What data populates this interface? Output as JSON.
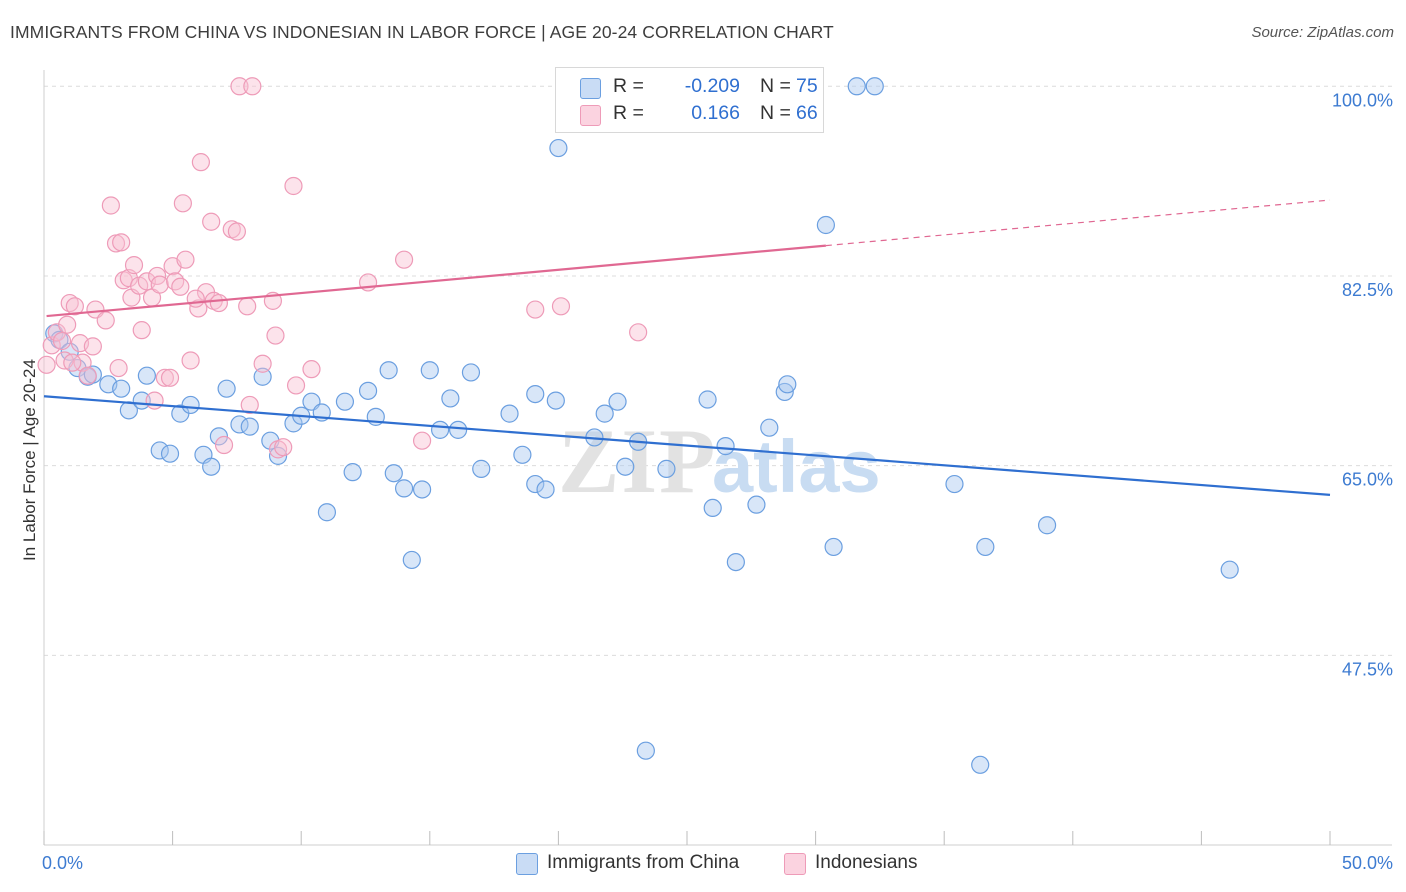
{
  "title": "IMMIGRANTS FROM CHINA VS INDONESIAN IN LABOR FORCE | AGE 20-24 CORRELATION CHART",
  "source": "Source: ZipAtlas.com",
  "watermark": "ZIPatlas",
  "legend": {
    "rows": [
      {
        "r_label": "R =",
        "r_value": "-0.209",
        "n_label": "N =",
        "n_value": "75",
        "color": "#a9c8f0",
        "border": "#5f95db"
      },
      {
        "r_label": "R =",
        "r_value": "0.166",
        "n_label": "N =",
        "n_value": "66",
        "color": "#f8c0d2",
        "border": "#e88aab"
      }
    ]
  },
  "bottom_legend": [
    {
      "label": "Immigrants from China",
      "color": "#a9c8f0",
      "border": "#5f95db"
    },
    {
      "label": "Indonesians",
      "color": "#f8c0d2",
      "border": "#e88aab"
    }
  ],
  "chart_data": {
    "type": "scatter",
    "title": "IMMIGRANTS FROM CHINA VS INDONESIAN IN LABOR FORCE | AGE 20-24 CORRELATION CHART",
    "xlabel": "",
    "ylabel": "In Labor Force | Age 20-24",
    "xlim": [
      0,
      50
    ],
    "ylim": [
      30,
      101.5
    ],
    "x_tick_labels": [
      "0.0%",
      "50.0%"
    ],
    "y_ticks": [
      47.5,
      65.0,
      82.5,
      100.0
    ],
    "y_tick_labels": [
      "47.5%",
      "65.0%",
      "82.5%",
      "100.0%"
    ],
    "grid": true,
    "legend_position": "top-center",
    "series": [
      {
        "name": "Immigrants from China",
        "color": "#6b9fe0",
        "trend": {
          "x": [
            0,
            50
          ],
          "y": [
            71.4,
            62.3
          ],
          "color": "#2f6fd0"
        },
        "points": [
          [
            0.4,
            77.2
          ],
          [
            0.6,
            76.6
          ],
          [
            1.0,
            75.5
          ],
          [
            1.3,
            74.0
          ],
          [
            1.7,
            73.2
          ],
          [
            1.9,
            73.4
          ],
          [
            2.5,
            72.5
          ],
          [
            3.0,
            72.1
          ],
          [
            3.3,
            70.1
          ],
          [
            3.8,
            71.0
          ],
          [
            4.0,
            73.3
          ],
          [
            4.5,
            66.4
          ],
          [
            4.9,
            66.1
          ],
          [
            5.3,
            69.8
          ],
          [
            5.7,
            70.6
          ],
          [
            6.2,
            66.0
          ],
          [
            6.5,
            64.9
          ],
          [
            6.8,
            67.7
          ],
          [
            7.1,
            72.1
          ],
          [
            7.6,
            68.8
          ],
          [
            8.0,
            68.6
          ],
          [
            8.5,
            73.2
          ],
          [
            8.8,
            67.3
          ],
          [
            9.1,
            65.9
          ],
          [
            9.7,
            68.9
          ],
          [
            10.0,
            69.6
          ],
          [
            10.4,
            70.9
          ],
          [
            10.8,
            69.9
          ],
          [
            11.0,
            60.7
          ],
          [
            11.7,
            70.9
          ],
          [
            12.0,
            64.4
          ],
          [
            12.6,
            71.9
          ],
          [
            12.9,
            69.5
          ],
          [
            13.4,
            73.8
          ],
          [
            13.6,
            64.3
          ],
          [
            14.0,
            62.9
          ],
          [
            14.3,
            56.3
          ],
          [
            14.7,
            62.8
          ],
          [
            15.0,
            73.8
          ],
          [
            15.4,
            68.3
          ],
          [
            15.8,
            71.2
          ],
          [
            16.1,
            68.3
          ],
          [
            16.6,
            73.6
          ],
          [
            17.0,
            64.7
          ],
          [
            18.1,
            69.8
          ],
          [
            18.6,
            66.0
          ],
          [
            19.1,
            71.6
          ],
          [
            19.1,
            63.3
          ],
          [
            19.5,
            62.8
          ],
          [
            19.9,
            71.0
          ],
          [
            20.0,
            94.3
          ],
          [
            21.4,
            67.6
          ],
          [
            21.8,
            69.8
          ],
          [
            22.3,
            70.9
          ],
          [
            22.6,
            64.9
          ],
          [
            23.1,
            67.2
          ],
          [
            23.4,
            38.7
          ],
          [
            24.2,
            64.7
          ],
          [
            25.8,
            71.1
          ],
          [
            26.0,
            61.1
          ],
          [
            26.5,
            66.8
          ],
          [
            26.9,
            56.1
          ],
          [
            27.7,
            61.4
          ],
          [
            28.2,
            68.5
          ],
          [
            28.8,
            71.8
          ],
          [
            28.9,
            72.5
          ],
          [
            30.4,
            87.2
          ],
          [
            30.7,
            57.5
          ],
          [
            31.6,
            100.0
          ],
          [
            32.3,
            100.0
          ],
          [
            35.4,
            63.3
          ],
          [
            36.4,
            37.4
          ],
          [
            36.6,
            57.5
          ],
          [
            39.0,
            59.5
          ],
          [
            46.1,
            55.4
          ]
        ]
      },
      {
        "name": "Indonesians",
        "color": "#ee9bb8",
        "trend": {
          "x": [
            0.1,
            30.4
          ],
          "y": [
            78.8,
            85.3
          ],
          "dash_to": [
            50,
            89.5
          ],
          "color": "#e06892"
        },
        "points": [
          [
            0.1,
            74.3
          ],
          [
            0.3,
            76.1
          ],
          [
            0.5,
            77.3
          ],
          [
            0.7,
            76.5
          ],
          [
            0.8,
            74.7
          ],
          [
            0.9,
            78.0
          ],
          [
            1.0,
            80.0
          ],
          [
            1.2,
            79.7
          ],
          [
            1.4,
            76.3
          ],
          [
            1.5,
            74.5
          ],
          [
            1.7,
            73.3
          ],
          [
            1.9,
            76.0
          ],
          [
            2.0,
            79.4
          ],
          [
            2.4,
            78.4
          ],
          [
            2.6,
            89.0
          ],
          [
            2.8,
            85.5
          ],
          [
            3.0,
            85.6
          ],
          [
            3.1,
            82.1
          ],
          [
            3.3,
            82.3
          ],
          [
            3.4,
            80.5
          ],
          [
            3.5,
            83.5
          ],
          [
            3.7,
            81.6
          ],
          [
            3.8,
            77.5
          ],
          [
            4.0,
            82.0
          ],
          [
            4.2,
            80.5
          ],
          [
            4.3,
            71.0
          ],
          [
            4.4,
            82.5
          ],
          [
            4.5,
            81.7
          ],
          [
            4.7,
            73.1
          ],
          [
            4.9,
            73.1
          ],
          [
            5.0,
            83.4
          ],
          [
            5.1,
            82.0
          ],
          [
            5.3,
            81.5
          ],
          [
            5.4,
            89.2
          ],
          [
            5.5,
            84.0
          ],
          [
            5.7,
            74.7
          ],
          [
            6.0,
            79.5
          ],
          [
            6.1,
            93.0
          ],
          [
            6.3,
            81.0
          ],
          [
            6.5,
            87.5
          ],
          [
            6.6,
            80.2
          ],
          [
            6.8,
            80.0
          ],
          [
            7.0,
            66.9
          ],
          [
            7.3,
            86.8
          ],
          [
            7.5,
            86.6
          ],
          [
            7.6,
            100.0
          ],
          [
            8.1,
            100.0
          ],
          [
            8.0,
            70.6
          ],
          [
            8.5,
            74.4
          ],
          [
            8.9,
            80.2
          ],
          [
            9.0,
            77.0
          ],
          [
            9.1,
            66.5
          ],
          [
            9.3,
            66.7
          ],
          [
            9.7,
            90.8
          ],
          [
            9.8,
            72.4
          ],
          [
            10.4,
            73.9
          ],
          [
            12.6,
            81.9
          ],
          [
            14.0,
            84.0
          ],
          [
            14.7,
            67.3
          ],
          [
            19.1,
            79.4
          ],
          [
            20.1,
            79.7
          ],
          [
            23.1,
            77.3
          ],
          [
            1.1,
            74.5
          ],
          [
            2.9,
            74.0
          ],
          [
            5.9,
            80.4
          ],
          [
            7.9,
            79.7
          ]
        ]
      }
    ]
  }
}
